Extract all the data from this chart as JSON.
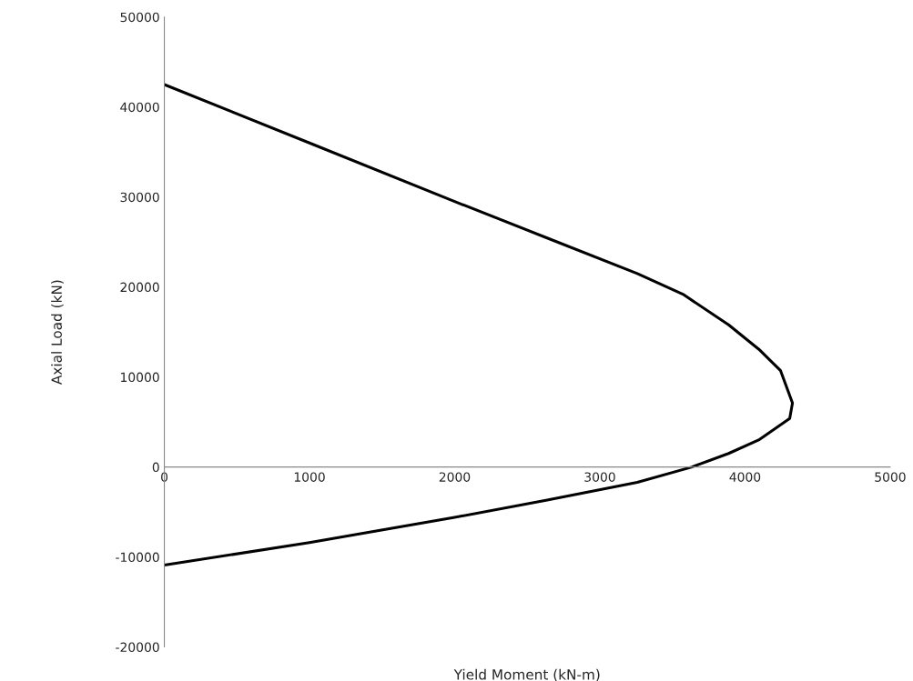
{
  "chart_data": {
    "type": "line",
    "xlabel": "Yield Moment (kN-m)",
    "ylabel": "Axial Load (kN)",
    "series": [
      {
        "color": "#000000",
        "x": [
          0,
          1000,
          2000,
          2629,
          3258,
          3572,
          3887,
          4094,
          4245,
          4327,
          4308,
          4094,
          3887,
          3635,
          3258,
          2629,
          2000,
          1000,
          0
        ],
        "values": [
          42500,
          36000,
          29500,
          25500,
          21500,
          19200,
          15800,
          13100,
          10700,
          7100,
          5400,
          3000,
          1500,
          0,
          -1700,
          -3700,
          -5600,
          -8400,
          -10900
        ]
      }
    ],
    "xlim": [
      0,
      5000
    ],
    "xticks": [
      0,
      1000,
      2000,
      3000,
      4000,
      5000
    ],
    "ylim": [
      -20000,
      50000
    ],
    "yticks": [
      -20000,
      -10000,
      0,
      10000,
      20000,
      30000,
      40000,
      50000
    ],
    "grid": false,
    "legend": false,
    "marker": "none",
    "line_style": "solid"
  }
}
